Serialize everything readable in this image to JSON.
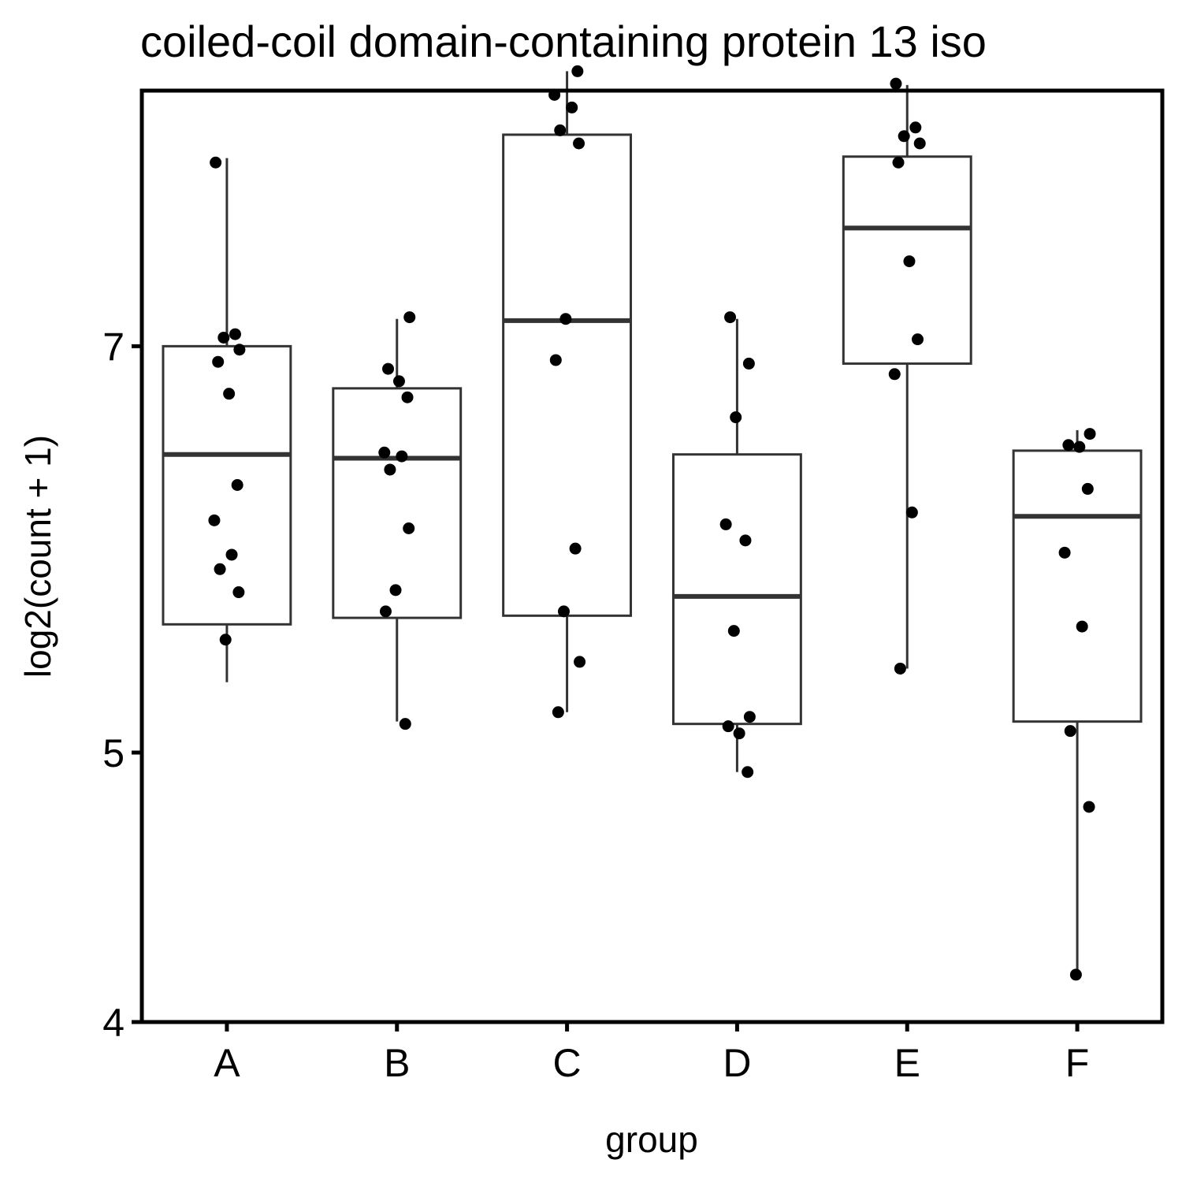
{
  "chart_data": {
    "type": "boxplot",
    "title": "coiled-coil domain-containing protein 13 iso",
    "xlabel": "group",
    "ylabel": "log2(count + 1)",
    "y_scale": "log2",
    "ylim": [
      4,
      8.65
    ],
    "y_ticks": [
      4,
      5,
      7
    ],
    "categories": [
      "A",
      "B",
      "C",
      "D",
      "E",
      "F"
    ],
    "groups": [
      {
        "name": "A",
        "q1": 5.56,
        "median": 6.4,
        "q3": 7.0,
        "whisker_low": 5.3,
        "whisker_high": 8.18,
        "points": [
          8.15,
          7.07,
          7.05,
          6.98,
          6.91,
          6.73,
          6.24,
          6.06,
          5.89,
          5.82,
          5.71,
          5.49
        ]
      },
      {
        "name": "B",
        "q1": 5.59,
        "median": 6.38,
        "q3": 6.76,
        "whisker_low": 5.13,
        "whisker_high": 7.16,
        "points": [
          7.17,
          6.87,
          6.8,
          6.71,
          6.41,
          6.39,
          6.32,
          6.02,
          5.72,
          5.62,
          5.12
        ]
      },
      {
        "name": "C",
        "q1": 5.6,
        "median": 7.15,
        "q3": 8.34,
        "whisker_low": 5.17,
        "whisker_high": 8.79,
        "points": [
          8.79,
          8.62,
          8.53,
          8.37,
          8.28,
          7.16,
          6.92,
          5.92,
          5.62,
          5.39,
          5.17
        ]
      },
      {
        "name": "D",
        "q1": 5.12,
        "median": 5.69,
        "q3": 6.4,
        "whisker_low": 4.92,
        "whisker_high": 7.16,
        "points": [
          7.17,
          6.9,
          6.6,
          6.04,
          5.96,
          5.53,
          5.15,
          5.11,
          5.08,
          4.92
        ]
      },
      {
        "name": "E",
        "q1": 6.9,
        "median": 7.72,
        "q3": 8.19,
        "whisker_low": 5.36,
        "whisker_high": 8.69,
        "points": [
          8.7,
          8.39,
          8.33,
          8.28,
          8.15,
          7.51,
          7.04,
          6.84,
          6.1,
          5.36
        ]
      },
      {
        "name": "F",
        "q1": 5.13,
        "median": 6.08,
        "q3": 6.42,
        "whisker_low": 4.17,
        "whisker_high": 6.53,
        "points": [
          6.51,
          6.45,
          6.44,
          6.22,
          5.9,
          5.55,
          5.09,
          4.78,
          4.16
        ]
      }
    ],
    "grid": false,
    "legend": "none"
  }
}
